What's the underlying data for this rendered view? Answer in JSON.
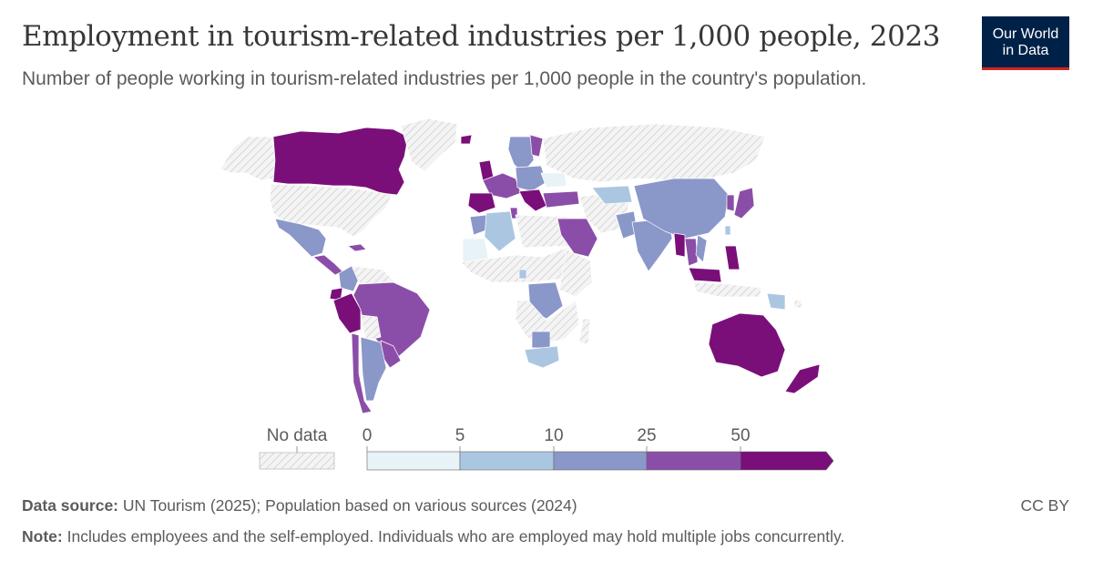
{
  "header": {
    "title": "Employment in tourism-related industries per 1,000 people, 2023",
    "subtitle": "Number of people working in tourism-related industries per 1,000 people in the country's population."
  },
  "logo": {
    "line1": "Our World",
    "line2": "in Data"
  },
  "legend": {
    "no_data_label": "No data",
    "ticks": [
      "0",
      "5",
      "10",
      "25",
      "50"
    ],
    "bins": [
      {
        "range": [
          0,
          5
        ],
        "color": "#e8f3f7"
      },
      {
        "range": [
          5,
          10
        ],
        "color": "#abc6e0"
      },
      {
        "range": [
          10,
          25
        ],
        "color": "#8a97c9"
      },
      {
        "range": [
          25,
          50
        ],
        "color": "#8b4ea8"
      },
      {
        "range": [
          50,
          null
        ],
        "color": "#7a0f7a"
      }
    ]
  },
  "colors": {
    "no_data_fill": "#f2f2f2",
    "no_data_hatch": "#cfcfcf",
    "border": "#ffffff"
  },
  "footer": {
    "source_label": "Data source:",
    "source_text": "UN Tourism (2025); Population based on various sources (2024)",
    "note_label": "Note:",
    "note_text": "Includes employees and the self-employed. Individuals who are employed may hold multiple jobs concurrently.",
    "license": "CC BY"
  }
}
